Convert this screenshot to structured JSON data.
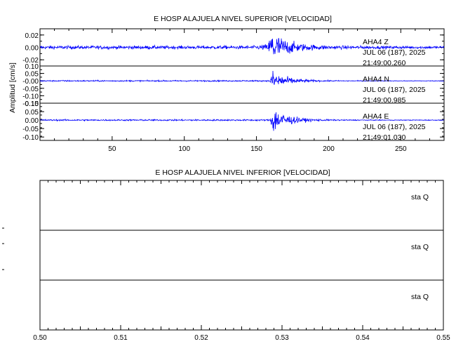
{
  "chart_data": [
    {
      "type": "line",
      "title": "E HOSP ALAJUELA NIVEL SUPERIOR [VELOCIDAD]",
      "ylabel": "Amplitud [cm/s]",
      "xlabel": "",
      "xlim": [
        0,
        280
      ],
      "x_ticks": [
        50,
        100,
        150,
        200,
        250
      ],
      "grid": false,
      "line_color": "#0000ff",
      "panels": [
        {
          "name": "AHA4 Z",
          "station_label": "AHA4   Z",
          "date_label": "JUL 06 (187), 2025",
          "time_label": "21:49:00.260",
          "ylim": [
            -0.03,
            0.03
          ],
          "y_ticks": [
            "0.02",
            "0.00",
            "-0.02"
          ],
          "y_tick_values": [
            0.02,
            0.0,
            -0.02
          ],
          "event_onset_x": 158,
          "peak_amplitude": 0.022
        },
        {
          "name": "AHA4 N",
          "station_label": "AHA4   N",
          "date_label": "JUL 06 (187), 2025",
          "time_label": "21:49:00.985",
          "ylim": [
            -0.15,
            0.1
          ],
          "y_ticks": [
            "0.10",
            "0.05",
            "-0.00",
            "-0.05",
            "-0.10",
            "-0.15"
          ],
          "y_tick_values": [
            0.1,
            0.05,
            0.0,
            -0.05,
            -0.1,
            -0.15
          ],
          "event_onset_x": 159,
          "peak_amplitude": 0.06
        },
        {
          "name": "AHA4 E",
          "station_label": "AHA4   E",
          "date_label": "JUL 06 (187), 2025",
          "time_label": "21:49:01.030",
          "ylim": [
            -0.12,
            0.1
          ],
          "y_ticks": [
            "0.10",
            "0.05",
            "0.00",
            "-0.05",
            "-0.10"
          ],
          "y_tick_values": [
            0.1,
            0.05,
            0.0,
            -0.05,
            -0.1
          ],
          "event_onset_x": 159,
          "peak_amplitude": 0.07
        }
      ]
    },
    {
      "type": "line",
      "title": "E HOSP ALAJUELA NIVEL INFERIOR [VELOCIDAD]",
      "xlabel": "",
      "ylabel": "",
      "xlim": [
        0.5,
        0.55
      ],
      "x_ticks": [
        "0.50",
        "0.51",
        "0.52",
        "0.53",
        "0.54",
        "0.55"
      ],
      "x_tick_values": [
        0.5,
        0.51,
        0.52,
        0.53,
        0.54,
        0.55
      ],
      "grid": false,
      "panels": [
        {
          "name": "sta Q 1",
          "label": "sta   Q"
        },
        {
          "name": "sta Q 2",
          "label": "sta   Q"
        },
        {
          "name": "sta Q 3",
          "label": "sta   Q"
        }
      ]
    }
  ]
}
